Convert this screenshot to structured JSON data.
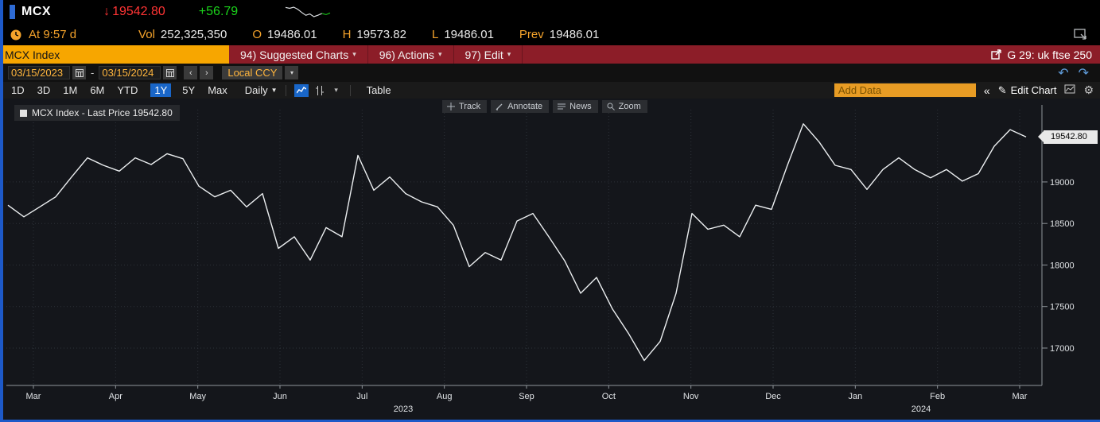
{
  "icons": {
    "down_arrow": "↓",
    "caret_small": "▾",
    "caret_down": "▼",
    "prev": "‹",
    "next": "›",
    "undo": "↶",
    "redo": "↷",
    "collapse": "«",
    "pencil": "✎",
    "gear": "⚙"
  },
  "ticker_bar": {
    "ticker": "MCX",
    "last_price": "19542.80",
    "change": "+56.79",
    "sparkline": [
      13,
      12.6,
      13.1,
      12.2,
      10.8,
      9.6,
      10.2,
      9.0,
      9.6,
      10.4,
      9.9,
      10.6
    ]
  },
  "quote_bar": {
    "time_label": "At 9:57 d",
    "vol_key": "Vol",
    "vol_value": "252,325,350",
    "open_key": "O",
    "open_value": "19486.01",
    "high_key": "H",
    "high_value": "19573.82",
    "low_key": "L",
    "low_value": "19486.01",
    "prev_key": "Prev",
    "prev_value": "19486.01"
  },
  "menu_bar": {
    "security_field": "MCX Index",
    "suggested_charts": "94) Suggested Charts",
    "actions": "96) Actions",
    "edit": "97) Edit",
    "chart_slot": "G 29: uk ftse 250"
  },
  "range_bar": {
    "start_date": "03/15/2023",
    "separator": "-",
    "end_date": "03/15/2024",
    "currency": "Local CCY"
  },
  "toolbar": {
    "periods": [
      "1D",
      "3D",
      "1M",
      "6M",
      "YTD",
      "1Y",
      "5Y",
      "Max"
    ],
    "active_period": "1Y",
    "frequency": "Daily",
    "table_label": "Table",
    "add_data": "Add Data",
    "edit_chart": "Edit Chart"
  },
  "chart": {
    "legend": "MCX Index - Last Price 19542.80",
    "tools": [
      "Track",
      "Annotate",
      "News",
      "Zoom"
    ],
    "price_tag": "19542.80"
  },
  "chart_data": {
    "type": "line",
    "title": "MCX Index - Last Price",
    "series_name": "MCX Index",
    "last_price": 19542.8,
    "ylim": [
      16550,
      19870
    ],
    "y_ticks": [
      19000,
      18500,
      18000,
      17500,
      17000
    ],
    "x_months": [
      "Mar",
      "Apr",
      "May",
      "Jun",
      "Jul",
      "Aug",
      "Sep",
      "Oct",
      "Nov",
      "Dec",
      "Jan",
      "Feb",
      "Mar"
    ],
    "years": [
      {
        "label": "2023",
        "month_pos": 4.5
      },
      {
        "label": "2024",
        "month_pos": 10.8
      }
    ],
    "values": [
      18720,
      18580,
      18700,
      18820,
      19060,
      19290,
      19200,
      19130,
      19290,
      19210,
      19340,
      19280,
      18950,
      18820,
      18900,
      18700,
      18860,
      18200,
      18340,
      18060,
      18450,
      18340,
      19320,
      18900,
      19060,
      18860,
      18760,
      18700,
      18480,
      17980,
      18150,
      18060,
      18530,
      18620,
      18340,
      18050,
      17660,
      17850,
      17470,
      17180,
      16850,
      17080,
      17660,
      18620,
      18430,
      18480,
      18340,
      18720,
      18670,
      19200,
      19700,
      19480,
      19200,
      19150,
      18910,
      19150,
      19290,
      19150,
      19050,
      19150,
      19010,
      19100,
      19430,
      19630,
      19542.8
    ]
  }
}
